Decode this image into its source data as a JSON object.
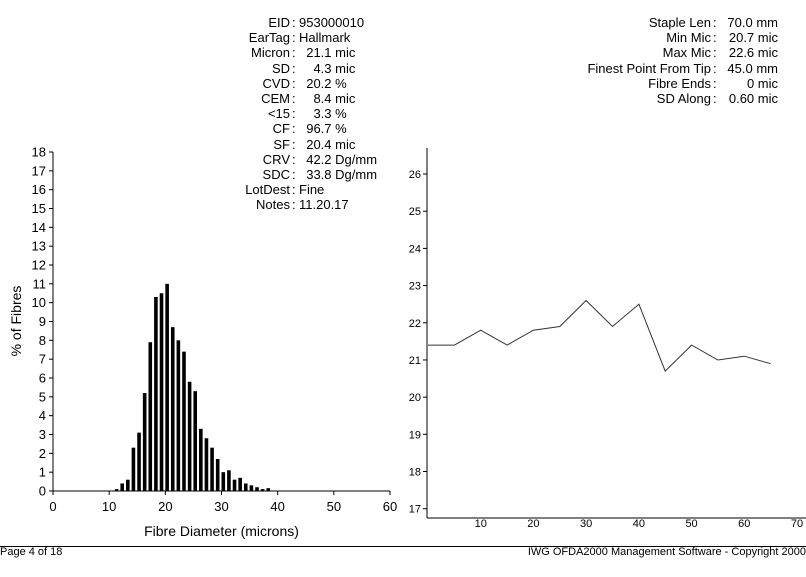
{
  "left_stats": [
    {
      "label": "EID",
      "value": "953000010"
    },
    {
      "label": "EarTag",
      "value": "Hallmark"
    },
    {
      "label": "Micron",
      "value": "  21.1 mic"
    },
    {
      "label": "SD",
      "value": "    4.3 mic"
    },
    {
      "label": "CVD",
      "value": "  20.2 %"
    },
    {
      "label": "CEM",
      "value": "    8.4 mic"
    },
    {
      "label": "<15",
      "value": "    3.3 %"
    },
    {
      "label": "CF",
      "value": "  96.7 %"
    },
    {
      "label": "SF",
      "value": "  20.4 mic"
    },
    {
      "label": "CRV",
      "value": "  42.2 Dg/mm"
    },
    {
      "label": "SDC",
      "value": "  33.8 Dg/mm"
    },
    {
      "label": "LotDest",
      "value": "Fine"
    },
    {
      "label": "Notes",
      "value": "11.20.17"
    }
  ],
  "right_stats": [
    {
      "label": "Staple Len",
      "value": "70.0 mm"
    },
    {
      "label": "Min Mic",
      "value": "20.7 mic"
    },
    {
      "label": "Max Mic",
      "value": "22.6 mic"
    },
    {
      "label": "Finest Point From Tip",
      "value": "45.0 mm"
    },
    {
      "label": "Fibre Ends",
      "value": "0 mic"
    },
    {
      "label": "SD Along",
      "value": "0.60 mic"
    }
  ],
  "footer": {
    "page": "Page 4 of 18",
    "software": "IWG OFDA2000 Management Software - Copyright 2000"
  },
  "chart_data": [
    {
      "type": "bar",
      "title": "",
      "xlabel": "Fibre Diameter (microns)",
      "ylabel": "% of Fibres",
      "xlim": [
        0,
        60
      ],
      "ylim": [
        0,
        18
      ],
      "xticks": [
        0,
        10,
        20,
        30,
        40,
        50,
        60
      ],
      "yticks": [
        0,
        1,
        2,
        3,
        4,
        5,
        6,
        7,
        8,
        9,
        10,
        11,
        12,
        13,
        14,
        15,
        16,
        17,
        18
      ],
      "x": [
        11,
        12,
        13,
        14,
        15,
        16,
        17,
        18,
        19,
        20,
        21,
        22,
        23,
        24,
        25,
        26,
        27,
        28,
        29,
        30,
        31,
        32,
        33,
        34,
        35,
        36,
        37,
        38
      ],
      "values": [
        0.1,
        0.4,
        0.6,
        2.3,
        3.1,
        5.2,
        7.9,
        10.3,
        10.5,
        11.0,
        8.7,
        8.0,
        7.4,
        5.8,
        5.3,
        3.3,
        2.8,
        2.3,
        1.7,
        1.0,
        1.1,
        0.6,
        0.7,
        0.4,
        0.3,
        0.2,
        0.1,
        0.15
      ]
    },
    {
      "type": "line",
      "xlabel": "",
      "ylabel": "",
      "xlim": [
        0,
        70
      ],
      "ylim": [
        16.75,
        26.7
      ],
      "xticks": [
        10,
        20,
        30,
        40,
        50,
        60,
        70
      ],
      "yticks": [
        17,
        18,
        19,
        20,
        21,
        22,
        23,
        24,
        25,
        26
      ],
      "x": [
        0,
        5,
        10,
        15,
        20,
        25,
        30,
        35,
        40,
        45,
        50,
        55,
        60,
        65
      ],
      "values": [
        21.4,
        21.4,
        21.8,
        21.4,
        21.8,
        21.9,
        22.6,
        21.9,
        22.5,
        20.7,
        21.4,
        21.0,
        21.1,
        20.9
      ]
    }
  ]
}
